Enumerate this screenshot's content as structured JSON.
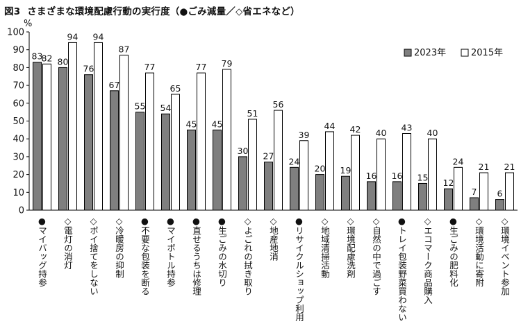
{
  "header": {
    "figure_label": "図3",
    "title": "さまざまな環境配慮行動の実行度（●ごみ減量／◇省エネなど）"
  },
  "chart_data": {
    "type": "bar",
    "title": "さまざまな環境配慮行動の実行度（●ごみ減量／◇省エネなど）",
    "ylabel": "%",
    "xlabel": "",
    "ylim": [
      0,
      100
    ],
    "yticks": [
      0,
      10,
      20,
      30,
      40,
      50,
      60,
      70,
      80,
      90,
      100
    ],
    "grid": false,
    "legend_position": "top-right",
    "categories": [
      "●マイバッグ持参",
      "◇電灯の消灯",
      "◇ポイ捨てをしない",
      "◇冷暖房の抑制",
      "●不要な包装を断る",
      "●マイボトル持参",
      "●直せるうちは修理",
      "●生ごみの水切り",
      "◇よごれの拭き取り",
      "◇地産地消",
      "●リサイクルショップ利用",
      "◇地域清掃活動",
      "◇環境配慮洗剤",
      "◇自然の中で過ごす",
      "●トレイ包装野菜買わない",
      "◇エコマーク商品購入",
      "●生ごみの肥料化",
      "◇環境活動に寄附",
      "◇環境イベント参加"
    ],
    "series": [
      {
        "name": "2023年",
        "color": "#7f7f7f",
        "values": [
          83,
          80,
          76,
          67,
          55,
          54,
          45,
          45,
          30,
          27,
          24,
          20,
          19,
          16,
          16,
          15,
          12,
          7,
          6
        ]
      },
      {
        "name": "2015年",
        "color": "#ffffff",
        "values": [
          82,
          94,
          94,
          87,
          77,
          65,
          77,
          79,
          51,
          56,
          39,
          44,
          42,
          40,
          43,
          40,
          24,
          21,
          21
        ]
      }
    ]
  }
}
